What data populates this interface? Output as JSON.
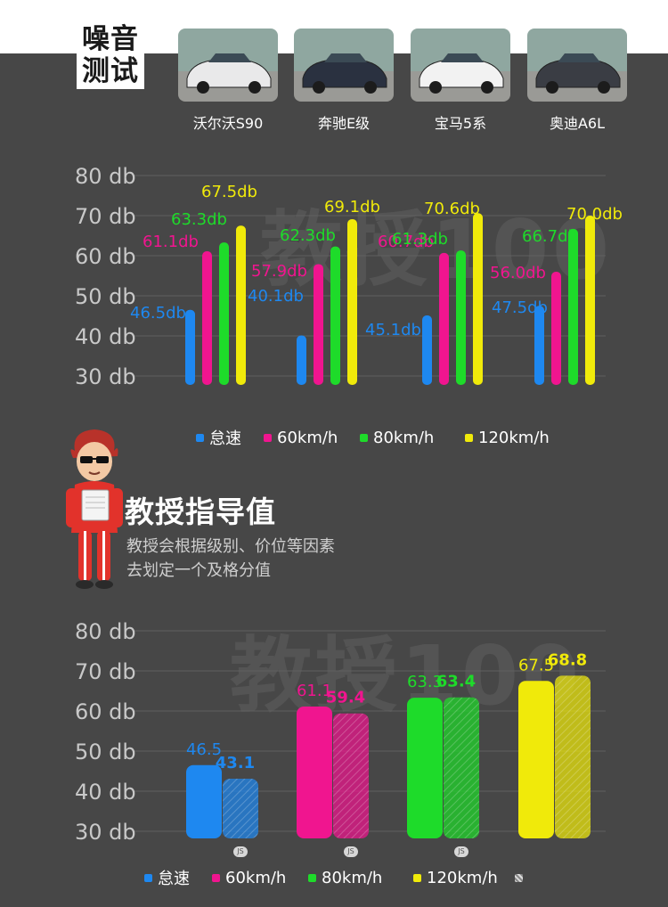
{
  "header": {
    "title_line1": "噪音",
    "title_line2": "测试",
    "cars": [
      {
        "name": "沃尔沃S90",
        "color": "#e9e9ea"
      },
      {
        "name": "奔驰E级",
        "color": "#2a3140"
      },
      {
        "name": "宝马5系",
        "color": "#f2f2f2"
      },
      {
        "name": "奥迪A6L",
        "color": "#3a3d44"
      }
    ]
  },
  "watermark_text": "教授100",
  "legend": [
    {
      "label": "怠速",
      "color": "#1e88f0"
    },
    {
      "label": "60km/h",
      "color": "#f0158f"
    },
    {
      "label": "80km/h",
      "color": "#1edb2a"
    },
    {
      "label": "120km/h",
      "color": "#f0ea0a"
    }
  ],
  "guide": {
    "title": "教授指导值",
    "note_line1": "教授会根据级别、价位等因素",
    "note_line2": "去划定一个及格分值",
    "js_badge": "JS"
  },
  "chart_data": [
    {
      "type": "bar",
      "title": "",
      "categories": [
        "沃尔沃S90",
        "奔驰E级",
        "宝马5系",
        "奥迪A6L"
      ],
      "y_ticks": [
        "80 db",
        "70 db",
        "60 db",
        "50 db",
        "40 db",
        "30 db"
      ],
      "ylim": [
        30,
        80
      ],
      "grid": true,
      "series": [
        {
          "name": "怠速",
          "color": "#1e88f0",
          "values": [
            46.5,
            40.1,
            45.1,
            47.5
          ],
          "labels": [
            "46.5db",
            "40.1db",
            "45.1db",
            "47.5db"
          ]
        },
        {
          "name": "60km/h",
          "color": "#f0158f",
          "values": [
            61.1,
            57.9,
            60.7,
            56.0
          ],
          "labels": [
            "61.1db",
            "57.9db",
            "60.7db",
            "56.0db"
          ]
        },
        {
          "name": "80km/h",
          "color": "#1edb2a",
          "values": [
            63.3,
            62.3,
            61.3,
            66.7
          ],
          "labels": [
            "63.3db",
            "62.3db",
            "61.3db",
            "66.7db"
          ]
        },
        {
          "name": "120km/h",
          "color": "#f0ea0a",
          "values": [
            67.5,
            69.1,
            70.6,
            70.0
          ],
          "labels": [
            "67.5db",
            "69.1db",
            "70.6db",
            "70.0db"
          ]
        }
      ]
    },
    {
      "type": "bar",
      "title": "",
      "categories": [
        "怠速",
        "60km/h",
        "80km/h",
        "120km/h"
      ],
      "y_ticks": [
        "80 db",
        "70 db",
        "60 db",
        "50 db",
        "40 db",
        "30 db"
      ],
      "ylim": [
        30,
        80
      ],
      "grid": true,
      "pairs": [
        {
          "color": "#1e88f0",
          "measured": 46.5,
          "measured_label": "46.5",
          "guide": 43.1,
          "guide_label": "43.1"
        },
        {
          "color": "#f0158f",
          "measured": 61.1,
          "measured_label": "61.1",
          "guide": 59.4,
          "guide_label": "59.4"
        },
        {
          "color": "#1edb2a",
          "measured": 63.3,
          "measured_label": "63.3",
          "guide": 63.4,
          "guide_label": "63.4"
        },
        {
          "color": "#f0ea0a",
          "measured": 67.5,
          "measured_label": "67.5",
          "guide": 68.8,
          "guide_label": "68.8"
        }
      ]
    }
  ]
}
